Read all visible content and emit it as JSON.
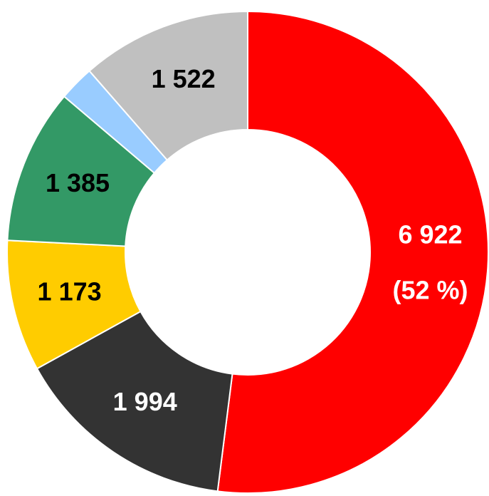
{
  "chart_data": {
    "type": "pie",
    "categories": [
      null,
      null,
      null,
      null,
      null,
      null
    ],
    "values": [
      6922,
      1994,
      1173,
      1385,
      316,
      1522
    ],
    "value_labels": [
      "6 922",
      "1 994",
      "1 173",
      "1 385",
      null,
      "1 522"
    ],
    "percent_labels": [
      "(52 %)",
      null,
      null,
      null,
      null,
      null
    ],
    "colors": [
      "#ff0000",
      "#333333",
      "#ffcc00",
      "#339966",
      "#99ccff",
      "#c0c0c0"
    ],
    "label_colors": [
      "#ffffff",
      "#ffffff",
      "#000000",
      "#000000",
      "#000000",
      "#000000"
    ]
  }
}
